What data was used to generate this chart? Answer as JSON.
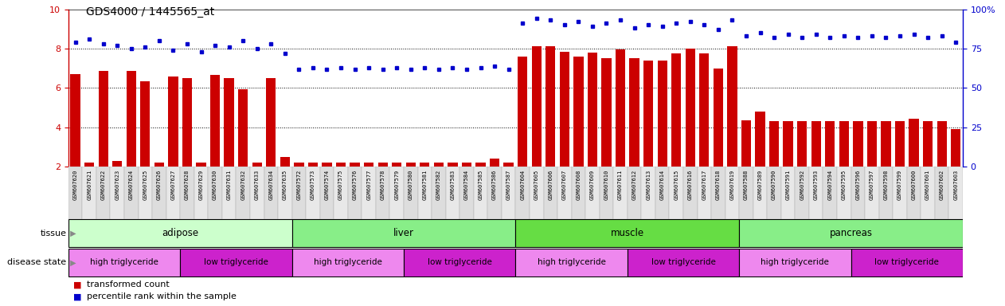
{
  "title": "GDS4000 / 1445565_at",
  "samples": [
    "GSM607620",
    "GSM607621",
    "GSM607622",
    "GSM607623",
    "GSM607624",
    "GSM607625",
    "GSM607626",
    "GSM607627",
    "GSM607628",
    "GSM607629",
    "GSM607630",
    "GSM607631",
    "GSM607632",
    "GSM607633",
    "GSM607634",
    "GSM607635",
    "GSM607572",
    "GSM607573",
    "GSM607574",
    "GSM607575",
    "GSM607576",
    "GSM607577",
    "GSM607578",
    "GSM607579",
    "GSM607580",
    "GSM607581",
    "GSM607582",
    "GSM607583",
    "GSM607584",
    "GSM607585",
    "GSM607586",
    "GSM607587",
    "GSM607604",
    "GSM607605",
    "GSM607606",
    "GSM607607",
    "GSM607608",
    "GSM607609",
    "GSM607610",
    "GSM607611",
    "GSM607612",
    "GSM607613",
    "GSM607614",
    "GSM607615",
    "GSM607616",
    "GSM607617",
    "GSM607618",
    "GSM607619",
    "GSM607588",
    "GSM607589",
    "GSM607590",
    "GSM607591",
    "GSM607592",
    "GSM607593",
    "GSM607594",
    "GSM607595",
    "GSM607596",
    "GSM607597",
    "GSM607598",
    "GSM607599",
    "GSM607600",
    "GSM607601",
    "GSM607602",
    "GSM607603"
  ],
  "bar_values": [
    6.7,
    2.2,
    6.85,
    2.3,
    6.85,
    6.35,
    2.2,
    6.6,
    6.5,
    2.2,
    6.65,
    6.5,
    5.95,
    2.2,
    6.5,
    2.5,
    2.2,
    2.2,
    2.2,
    2.2,
    2.2,
    2.2,
    2.2,
    2.2,
    2.2,
    2.2,
    2.2,
    2.2,
    2.2,
    2.2,
    2.4,
    2.2,
    7.6,
    8.1,
    8.1,
    7.85,
    7.6,
    7.8,
    7.5,
    7.95,
    7.5,
    7.4,
    7.4,
    7.75,
    8.0,
    7.75,
    7.0,
    8.1,
    4.35,
    4.8,
    4.3,
    4.3,
    4.3,
    4.3,
    4.3,
    4.3,
    4.3,
    4.3,
    4.3,
    4.3,
    4.45,
    4.3,
    4.3,
    3.9
  ],
  "dot_values": [
    79,
    81,
    78,
    77,
    75,
    76,
    80,
    74,
    78,
    73,
    77,
    76,
    80,
    75,
    78,
    72,
    62,
    63,
    62,
    63,
    62,
    63,
    62,
    63,
    62,
    63,
    62,
    63,
    62,
    63,
    64,
    62,
    91,
    94,
    93,
    90,
    92,
    89,
    91,
    93,
    88,
    90,
    89,
    91,
    92,
    90,
    87,
    93,
    83,
    85,
    82,
    84,
    82,
    84,
    82,
    83,
    82,
    83,
    82,
    83,
    84,
    82,
    83,
    79
  ],
  "ylim_left": [
    2,
    10
  ],
  "ylim_right": [
    0,
    100
  ],
  "yticks_left": [
    2,
    4,
    6,
    8,
    10
  ],
  "yticks_right": [
    0,
    25,
    50,
    75,
    100
  ],
  "bar_color": "#cc0000",
  "dot_color": "#0000cc",
  "tissue_groups": [
    [
      0,
      15,
      "adipose",
      "#ccffcc"
    ],
    [
      16,
      31,
      "liver",
      "#88ee88"
    ],
    [
      32,
      47,
      "muscle",
      "#66dd44"
    ],
    [
      48,
      63,
      "pancreas",
      "#88ee88"
    ]
  ],
  "disease_groups": [
    [
      0,
      7,
      "high triglyceride",
      "#ee88ee"
    ],
    [
      8,
      15,
      "low triglyceride",
      "#cc22cc"
    ],
    [
      16,
      23,
      "high triglyceride",
      "#ee88ee"
    ],
    [
      24,
      31,
      "low triglyceride",
      "#cc22cc"
    ],
    [
      32,
      39,
      "high triglyceride",
      "#ee88ee"
    ],
    [
      40,
      47,
      "low triglyceride",
      "#cc22cc"
    ],
    [
      48,
      55,
      "high triglyceride",
      "#ee88ee"
    ],
    [
      56,
      63,
      "low triglyceride",
      "#cc22cc"
    ]
  ],
  "xtick_bg": "#dddddd",
  "xtick_border": "#999999"
}
